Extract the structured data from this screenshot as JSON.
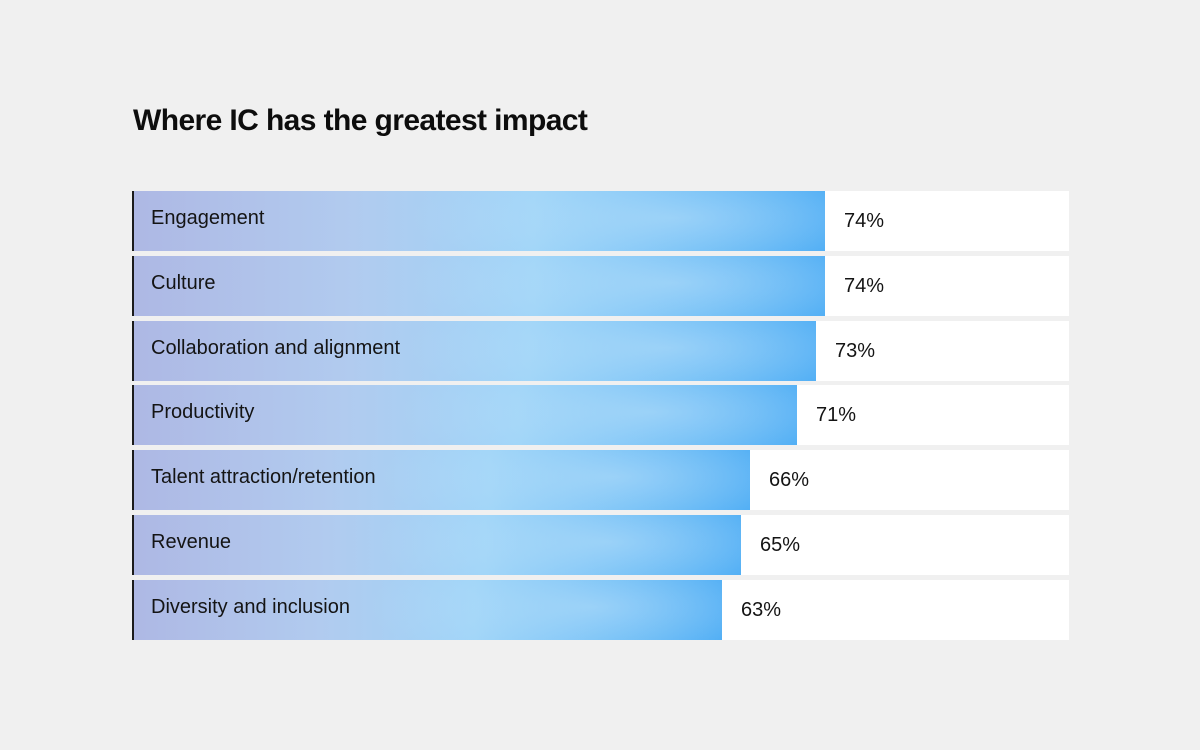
{
  "chart_data": {
    "type": "bar",
    "orientation": "horizontal",
    "title": "Where IC has the greatest impact",
    "xlabel": "",
    "ylabel": "",
    "xlim": [
      0,
      100
    ],
    "grid": false,
    "legend": "none",
    "bar_color_start": "#aeb8e4",
    "bar_color_end": "#45a9f4",
    "categories": [
      "Engagement",
      "Culture",
      "Collaboration and alignment",
      "Productivity",
      "Talent attraction/retention",
      "Revenue",
      "Diversity and inclusion"
    ],
    "values": [
      74,
      74,
      73,
      71,
      66,
      65,
      63
    ],
    "value_labels": [
      "74%",
      "74%",
      "73%",
      "71%",
      "66%",
      "65%",
      "63%"
    ]
  }
}
